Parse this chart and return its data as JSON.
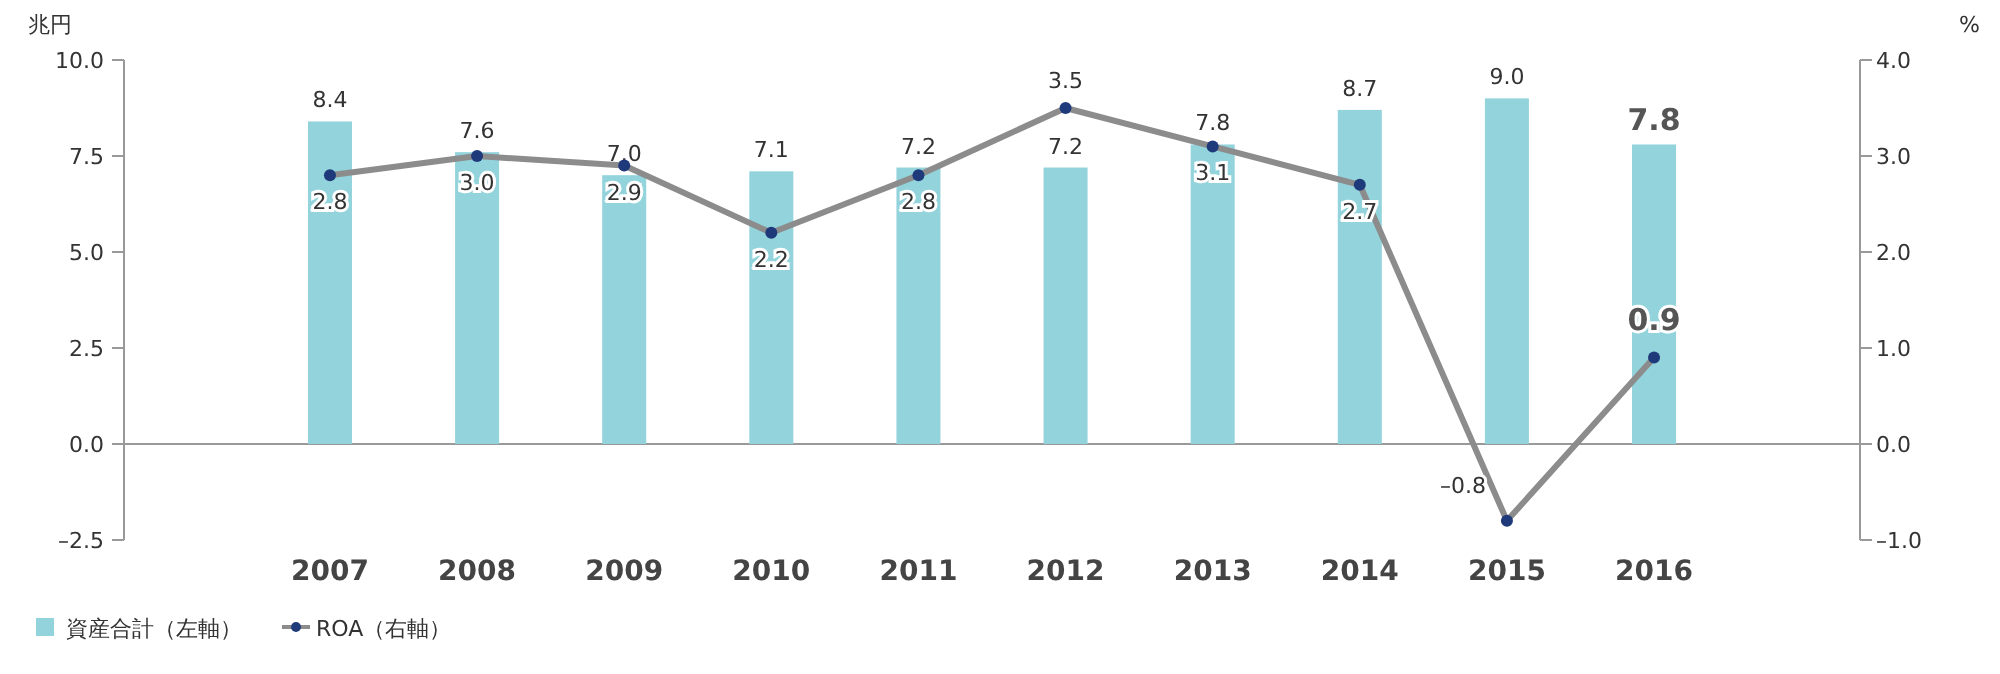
{
  "chart_data": {
    "type": "bar",
    "ylabel": "兆円",
    "y2label": "%",
    "legend": "bottom left",
    "categories": [
      "2007",
      "2008",
      "2009",
      "2010",
      "2011",
      "2012",
      "2013",
      "2014",
      "2015",
      "2016"
    ],
    "ylim": [
      -2.5,
      10
    ],
    "yticks": [
      {
        "value": -2.5,
        "label": "–2.5"
      },
      {
        "value": 0,
        "label": "0.0"
      },
      {
        "value": 2.5,
        "label": "2.5"
      },
      {
        "value": 5,
        "label": "5.0"
      },
      {
        "value": 7.5,
        "label": "7.5"
      },
      {
        "value": 10,
        "label": "10.0"
      }
    ],
    "y2lim": [
      -1,
      4
    ],
    "y2ticks": [
      {
        "value": -1,
        "label": "–1.0"
      },
      {
        "value": 0,
        "label": "0.0"
      },
      {
        "value": 1,
        "label": "1.0"
      },
      {
        "value": 2,
        "label": "2.0"
      },
      {
        "value": 3,
        "label": "3.0"
      },
      {
        "value": 4,
        "label": "4.0"
      }
    ],
    "series": [
      {
        "name": "資産合計（左軸）",
        "color": "#92d3dc",
        "values": [
          8.4,
          7.6,
          7.0,
          7.1,
          7.2,
          7.2,
          7.8,
          8.7,
          9.0,
          7.8
        ],
        "value_labels": [
          "8.4",
          "7.6",
          "7.0",
          "7.1",
          "7.2",
          "7.2",
          "7.8",
          "8.7",
          "9.0",
          "7.8"
        ]
      },
      {
        "name": "ROA（右軸）",
        "type": "line",
        "axis": "y2",
        "marker": "circle",
        "color": "#8c8c8c",
        "values": [
          2.8,
          3.0,
          2.9,
          2.2,
          2.8,
          3.5,
          3.1,
          2.7,
          -0.8,
          0.9
        ],
        "value_labels": [
          "2.8",
          "3.0",
          "2.9",
          "2.2",
          "2.8",
          "3.5",
          "3.1",
          "2.7",
          "–0.8",
          "0.9"
        ]
      }
    ]
  }
}
